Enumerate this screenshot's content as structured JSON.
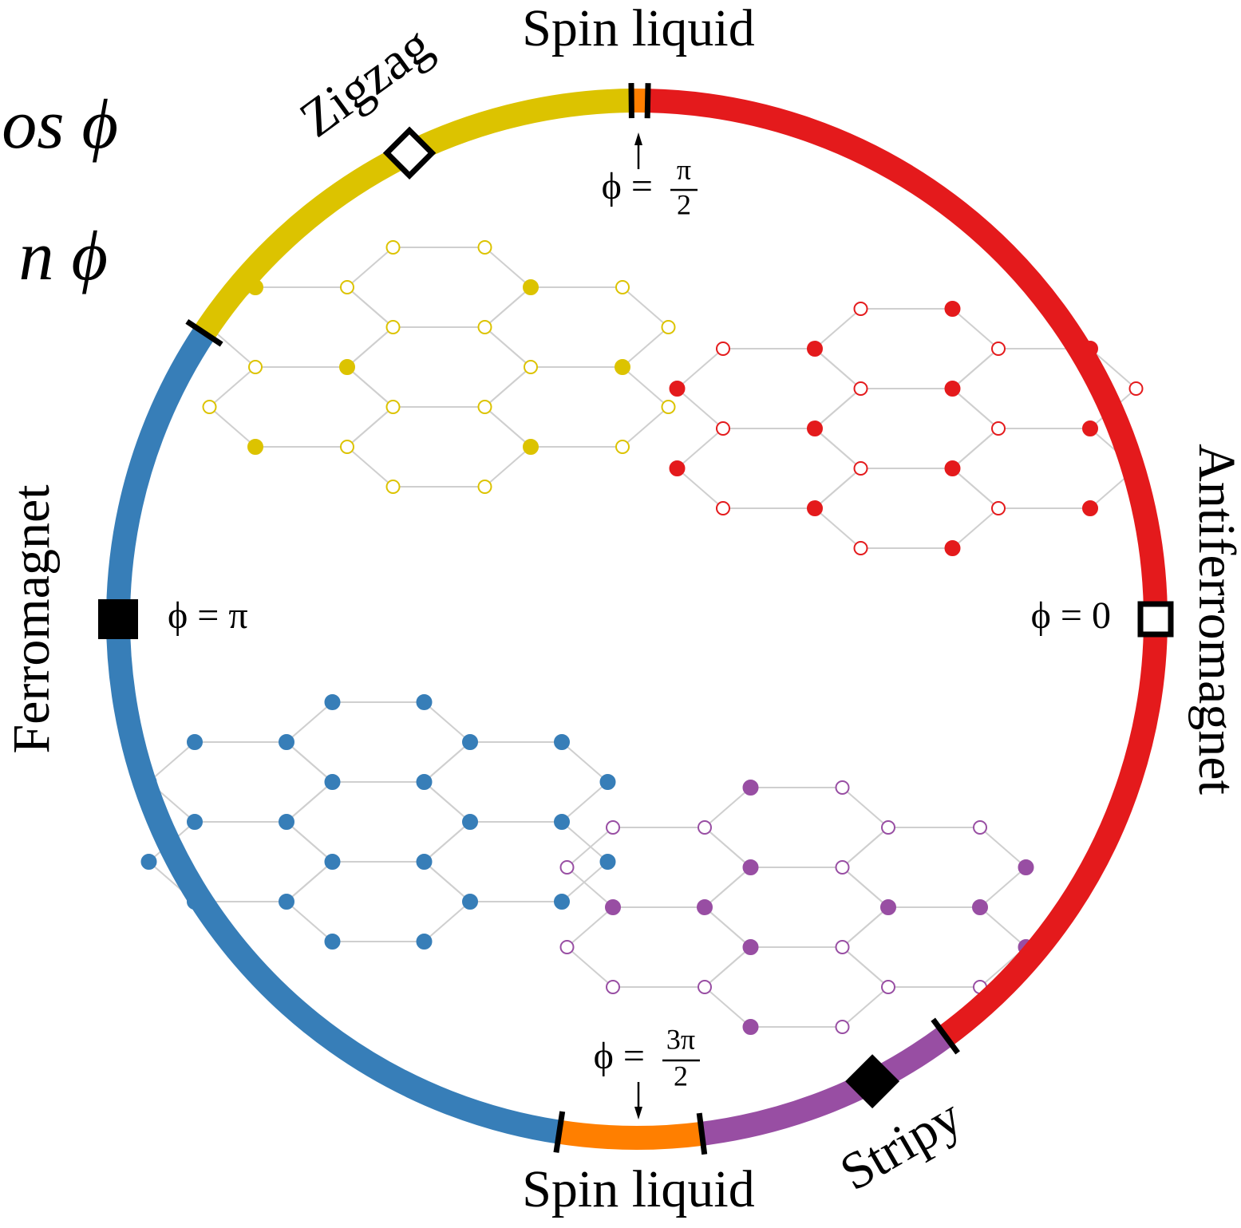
{
  "header_fragments": [
    "os ϕ",
    "n ϕ"
  ],
  "phase_labels": {
    "top": "Spin liquid",
    "bottom": "Spin liquid",
    "zigzag": "Zigzag",
    "stripy": "Stripy",
    "ferromagnet": "Ferromagnet",
    "antiferromagnet": "Antiferromagnet"
  },
  "annotations": {
    "right": {
      "text": "ϕ = 0"
    },
    "left": {
      "text": "ϕ = π"
    },
    "top": {
      "lhs": "ϕ =",
      "numerator": "π",
      "denominator": "2"
    },
    "bottom": {
      "lhs": "ϕ =",
      "numerator": "3π",
      "denominator": "2"
    }
  }
}
